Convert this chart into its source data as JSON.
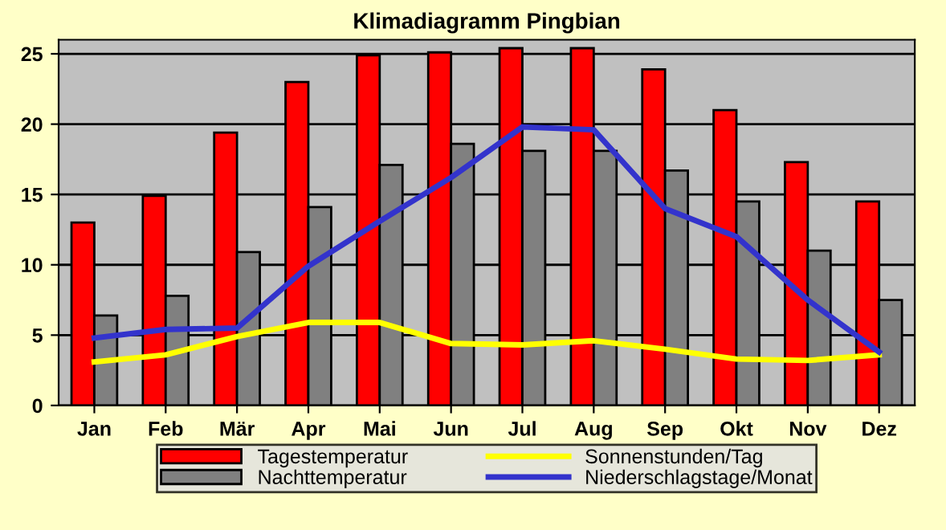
{
  "chart_data": {
    "type": "bar",
    "title": "Klimadiagramm Pingbian",
    "categories": [
      "Jan",
      "Feb",
      "Mär",
      "Apr",
      "Mai",
      "Jun",
      "Jul",
      "Aug",
      "Sep",
      "Okt",
      "Nov",
      "Dez"
    ],
    "series": [
      {
        "name": "Tagestemperatur",
        "color": "#ff0000",
        "values": [
          13,
          14.9,
          19.4,
          23,
          24.9,
          25.1,
          25.4,
          25.4,
          23.9,
          21,
          17.3,
          14.5
        ]
      },
      {
        "name": "Nachttemperatur",
        "color": "#808080",
        "values": [
          6.4,
          7.8,
          10.9,
          14.1,
          17.1,
          18.6,
          18.1,
          18.1,
          16.7,
          14.5,
          11,
          7.5
        ]
      },
      {
        "name": "Sonnenstunden/Tag",
        "type": "line",
        "color": "#ffff00",
        "values": [
          3.1,
          3.6,
          4.9,
          5.9,
          5.9,
          4.4,
          4.3,
          4.6,
          4.0,
          3.3,
          3.2,
          3.6
        ]
      },
      {
        "name": "Niederschlagstage/Monat",
        "type": "line",
        "color": "#3333cc",
        "values": [
          4.8,
          5.4,
          5.5,
          9.9,
          13.1,
          16.2,
          19.8,
          19.6,
          14.0,
          12.0,
          7.5,
          3.8
        ]
      }
    ],
    "ylim": [
      0,
      26
    ],
    "yticks": [
      0,
      5,
      10,
      15,
      20,
      25
    ],
    "grid": "y",
    "legend": "bottom"
  }
}
